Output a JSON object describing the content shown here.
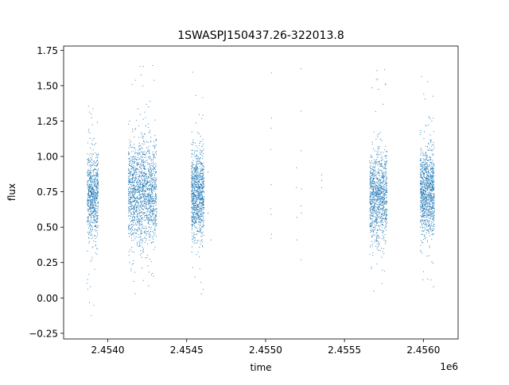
{
  "chart_data": {
    "type": "scatter",
    "title": "1SWASPJ150437.26-322013.8",
    "xlabel": "time",
    "ylabel": "flux",
    "x_offset_label": "1e6",
    "xlim": [
      2.45372,
      2.45622
    ],
    "ylim": [
      -0.29,
      1.78
    ],
    "x_ticks": [
      2.454,
      2.4545,
      2.455,
      2.4555,
      2.456
    ],
    "x_tick_labels": [
      "2.4540",
      "2.4545",
      "2.4550",
      "2.4555",
      "2.4560"
    ],
    "y_ticks": [
      -0.25,
      0.0,
      0.25,
      0.5,
      0.75,
      1.0,
      1.25,
      1.5,
      1.75
    ],
    "y_tick_labels": [
      "−0.25",
      "0.00",
      "0.25",
      "0.50",
      "0.75",
      "1.00",
      "1.25",
      "1.50",
      "1.75"
    ],
    "grid": false,
    "marker_color": "#1f77b4",
    "series": [
      {
        "clusters": [
          {
            "x_range": [
              2.45387,
              2.45394
            ],
            "y_center": 0.72,
            "y_spread": 0.15,
            "y_range": [
              -0.2,
              1.38
            ],
            "n": 700
          },
          {
            "x_range": [
              2.45413,
              2.45431
            ],
            "y_center": 0.74,
            "y_spread": 0.19,
            "y_range": [
              0.0,
              1.68
            ],
            "n": 1500
          },
          {
            "x_range": [
              2.45453,
              2.45461
            ],
            "y_center": 0.73,
            "y_spread": 0.16,
            "y_range": [
              0.0,
              1.6
            ],
            "n": 900
          },
          {
            "x_range": [
              2.45566,
              2.45577
            ],
            "y_center": 0.72,
            "y_spread": 0.16,
            "y_range": [
              0.02,
              1.65
            ],
            "n": 1000
          },
          {
            "x_range": [
              2.45598,
              2.45607
            ],
            "y_center": 0.74,
            "y_spread": 0.16,
            "y_range": [
              0.02,
              1.57
            ],
            "n": 1000
          }
        ],
        "points": [
          [
            2.454635,
            0.89
          ],
          [
            2.454635,
            0.6
          ],
          [
            2.454655,
            0.41
          ],
          [
            2.455038,
            1.59
          ],
          [
            2.455038,
            1.27
          ],
          [
            2.455035,
            1.2
          ],
          [
            2.455032,
            1.05
          ],
          [
            2.455035,
            0.8
          ],
          [
            2.455032,
            0.63
          ],
          [
            2.455035,
            0.59
          ],
          [
            2.455038,
            0.45
          ],
          [
            2.455035,
            0.42
          ],
          [
            2.455195,
            0.92
          ],
          [
            2.455195,
            0.78
          ],
          [
            2.455198,
            0.57
          ],
          [
            2.455198,
            0.41
          ],
          [
            2.455225,
            1.62
          ],
          [
            2.455225,
            1.32
          ],
          [
            2.455225,
            1.04
          ],
          [
            2.455228,
            0.77
          ],
          [
            2.455225,
            0.65
          ],
          [
            2.455228,
            0.6
          ],
          [
            2.455225,
            0.27
          ],
          [
            2.455355,
            0.87
          ],
          [
            2.455355,
            0.83
          ],
          [
            2.455355,
            0.78
          ]
        ]
      }
    ]
  }
}
